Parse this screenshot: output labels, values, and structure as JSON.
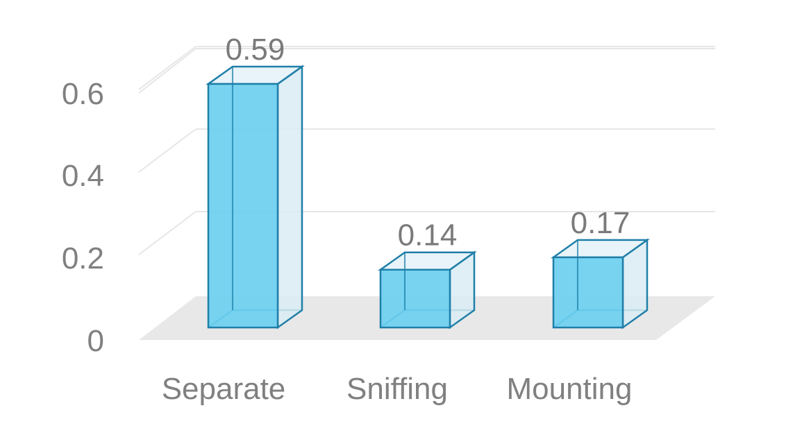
{
  "chart_data": {
    "type": "bar",
    "categories": [
      "Separate",
      "Sniffing",
      "Mounting"
    ],
    "values": [
      0.59,
      0.14,
      0.17
    ],
    "data_labels": [
      "0.59",
      "0.14",
      "0.17"
    ],
    "y_ticks": [
      0,
      0.2,
      0.4,
      0.6
    ],
    "y_tick_labels": [
      "0",
      "0.2",
      "0.4",
      "0.6"
    ],
    "ylim": [
      0,
      0.6
    ],
    "grid": true,
    "legend": "none",
    "style": "3d-column",
    "colors": {
      "bar_front": "#6ccff0",
      "bar_side": "#d9ecf3",
      "bar_top": "#e6f3f8",
      "bar_edge": "#1f7fa8",
      "floor": "#e8e8e8",
      "grid": "#e6e6e6",
      "text": "#808080"
    }
  }
}
